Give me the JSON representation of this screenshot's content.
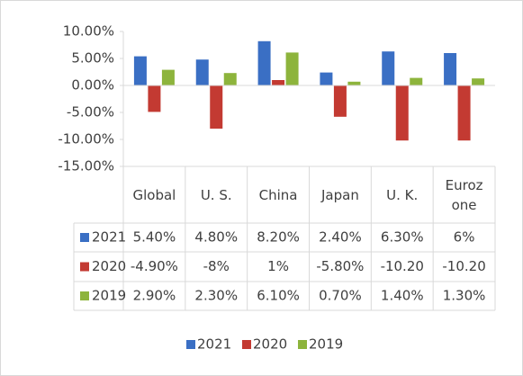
{
  "chart_data": {
    "type": "bar",
    "categories": [
      "Global",
      "U. S.",
      "China",
      "Japan",
      "U. K.",
      "Eurozone"
    ],
    "series": [
      {
        "name": "2021",
        "color": "#3a6fc4",
        "values": [
          5.4,
          4.8,
          8.2,
          2.4,
          6.3,
          6
        ],
        "value_labels": [
          "5.40%",
          "4.80%",
          "8.20%",
          "2.40%",
          "6.30%",
          "6%"
        ]
      },
      {
        "name": "2020",
        "color": "#c33a32",
        "values": [
          -4.9,
          -8,
          1,
          -5.8,
          -10.2,
          -10.2
        ],
        "value_labels": [
          "-4.90%",
          "-8%",
          "1%",
          "-5.80%",
          "-10.20",
          "-10.20"
        ]
      },
      {
        "name": "2019",
        "color": "#8db43c",
        "values": [
          2.9,
          2.3,
          6.1,
          0.7,
          1.4,
          1.3
        ],
        "value_labels": [
          "2.90%",
          "2.30%",
          "6.10%",
          "0.70%",
          "1.40%",
          "1.30%"
        ]
      }
    ],
    "ylim": [
      -15,
      10
    ],
    "yticks": [
      {
        "value": -15,
        "label": "-15.00%"
      },
      {
        "value": -10,
        "label": "-10.00%"
      },
      {
        "value": -5,
        "label": "-5.00%"
      },
      {
        "value": 0,
        "label": "0.00%"
      },
      {
        "value": 5,
        "label": "5.00%"
      },
      {
        "value": 10,
        "label": "10.00%"
      }
    ],
    "legend": "bottom"
  }
}
